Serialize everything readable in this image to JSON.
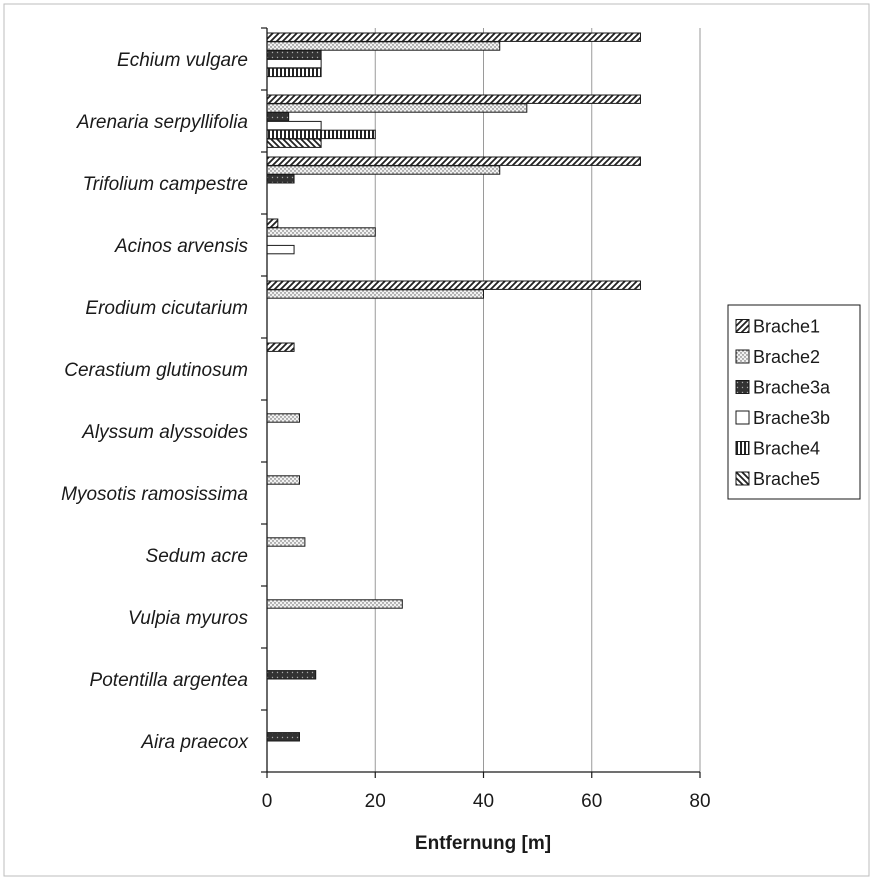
{
  "chart_data": {
    "type": "bar",
    "orientation": "horizontal",
    "categories": [
      "Echium vulgare",
      "Arenaria serpyllifolia",
      "Trifolium campestre",
      "Acinos arvensis",
      "Erodium cicutarium",
      "Cerastium glutinosum",
      "Alyssum alyssoides",
      "Myosotis ramosissima",
      "Sedum acre",
      "Vulpia myuros",
      "Potentilla argentea",
      "Aira praecox"
    ],
    "series": [
      {
        "name": "Brache1",
        "pattern": "diagonal",
        "values": [
          69,
          69,
          69,
          2,
          69,
          5,
          null,
          null,
          null,
          null,
          null,
          null
        ]
      },
      {
        "name": "Brache2",
        "pattern": "dots",
        "values": [
          43,
          48,
          43,
          20,
          40,
          null,
          6,
          6,
          7,
          25,
          null,
          null
        ]
      },
      {
        "name": "Brache3a",
        "pattern": "dark",
        "values": [
          10,
          4,
          5,
          null,
          null,
          null,
          null,
          null,
          null,
          null,
          9,
          6
        ]
      },
      {
        "name": "Brache3b",
        "pattern": "white",
        "values": [
          10,
          10,
          null,
          5,
          null,
          null,
          null,
          null,
          null,
          null,
          null,
          null
        ]
      },
      {
        "name": "Brache4",
        "pattern": "vertical",
        "values": [
          10,
          20,
          null,
          null,
          null,
          null,
          null,
          null,
          null,
          null,
          null,
          null
        ]
      },
      {
        "name": "Brache5",
        "pattern": "backslash",
        "values": [
          null,
          10,
          null,
          null,
          null,
          null,
          null,
          null,
          null,
          null,
          null,
          null
        ]
      }
    ],
    "xlabel": "Entfernung [m]",
    "xlim": [
      0,
      80
    ],
    "xticks": [
      "0",
      "20",
      "40",
      "60",
      "80"
    ],
    "grid": "vertical",
    "legend": "right"
  }
}
